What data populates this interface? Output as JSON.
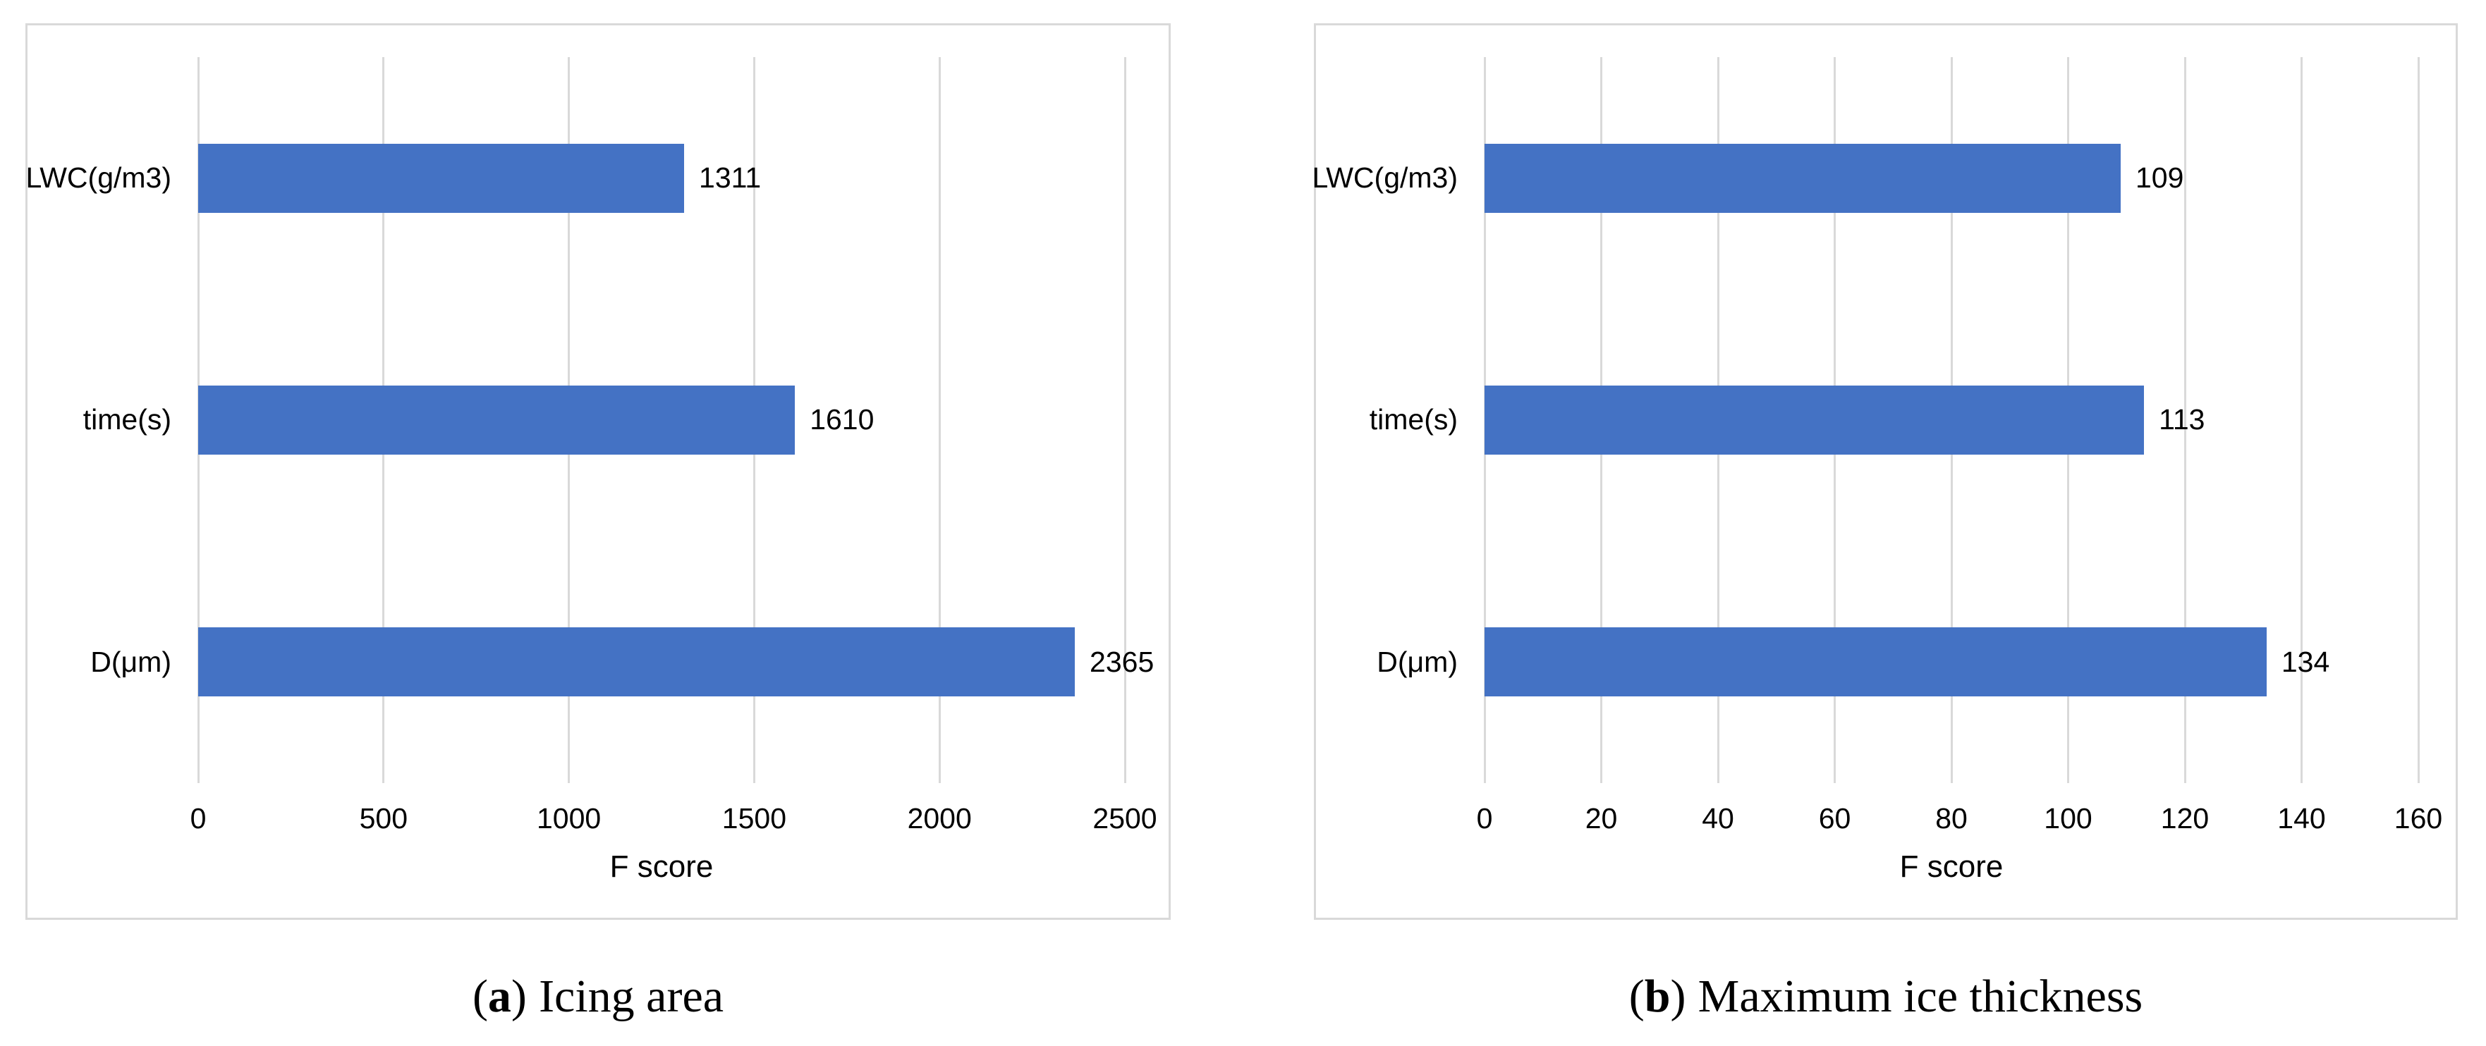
{
  "styles": {
    "bar_color": "#4472C4",
    "grid_color": "#D9D9D9",
    "panel_border_color": "#D9D9D9",
    "text_color": "#000000"
  },
  "chart_data": [
    {
      "type": "bar",
      "orientation": "horizontal",
      "title": "(a) Icing area",
      "caption_open": "(",
      "caption_marker": "a",
      "caption_close": ")",
      "caption_label": "Icing area",
      "xlabel": "F score",
      "categories": [
        "LWC(g/m3)",
        "time(s)",
        "D(μm)"
      ],
      "values": [
        1311,
        1610,
        2365
      ],
      "value_labels": [
        "1311",
        "1610",
        "2365"
      ],
      "xlim": [
        0,
        2500
      ],
      "xticks": [
        0,
        500,
        1000,
        1500,
        2000,
        2500
      ],
      "grid": "vertical",
      "legend": false
    },
    {
      "type": "bar",
      "orientation": "horizontal",
      "title": "(b) Maximum ice thickness",
      "caption_open": "(",
      "caption_marker": "b",
      "caption_close": ")",
      "caption_label": "Maximum ice thickness",
      "xlabel": "F score",
      "categories": [
        "LWC(g/m3)",
        "time(s)",
        "D(μm)"
      ],
      "values": [
        109,
        113,
        134
      ],
      "value_labels": [
        "109",
        "113",
        "134"
      ],
      "xlim": [
        0,
        160
      ],
      "xticks": [
        0,
        20,
        40,
        60,
        80,
        100,
        120,
        140,
        160
      ],
      "grid": "vertical",
      "legend": false
    }
  ]
}
